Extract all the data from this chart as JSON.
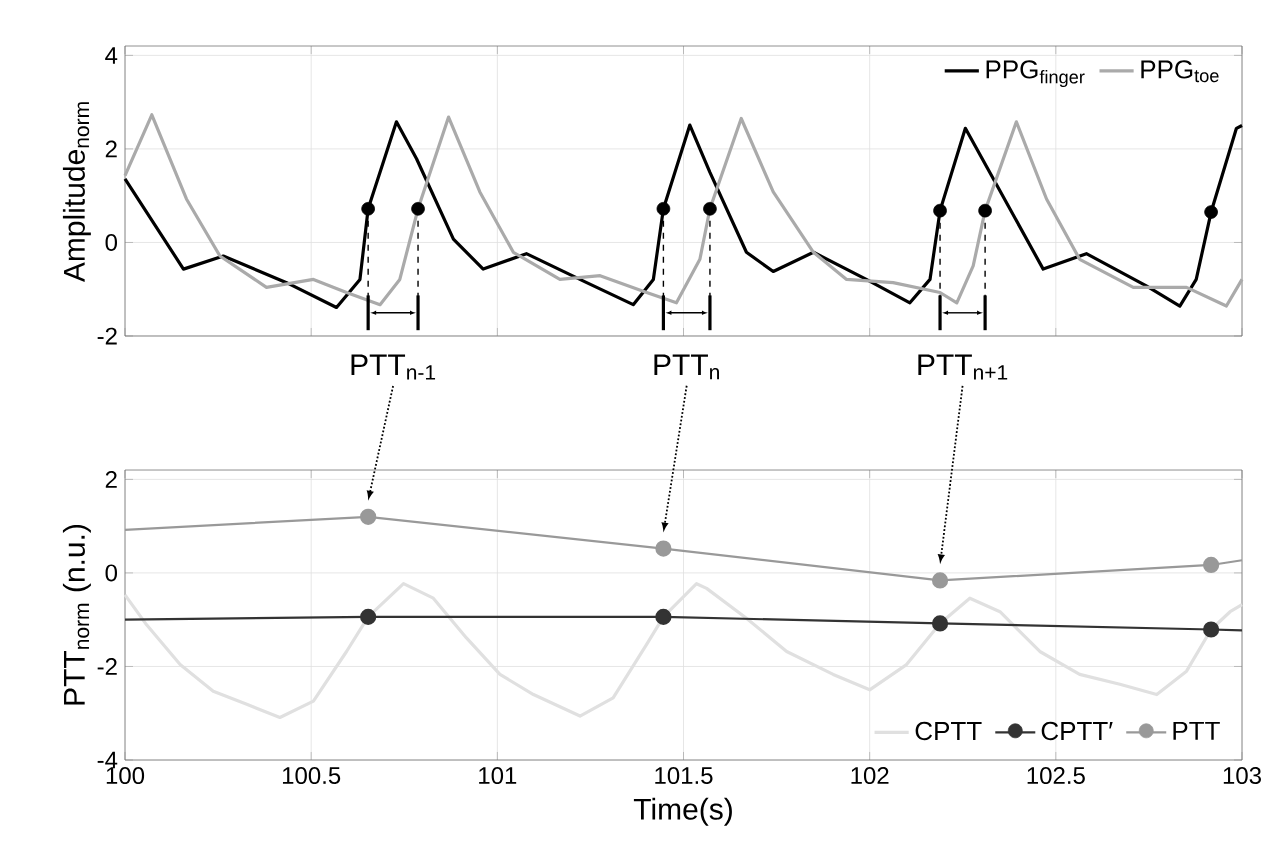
{
  "chart_data": [
    {
      "type": "line",
      "ylabel": "Amplitude$_{norm}$",
      "xlim": [
        100,
        103
      ],
      "ylim": [
        -2,
        4.2
      ],
      "xticks": [
        100,
        100.5,
        101,
        101.5,
        102,
        102.5,
        103
      ],
      "yticks": [
        -2,
        0,
        2,
        4
      ],
      "tick_labels": "y",
      "grid": true,
      "legend": "top right",
      "annotations": [
        {
          "text": "PTT$_{n-1}$",
          "x": 100.653,
          "y": 0.72
        },
        {
          "text": "PTT$_{n}$",
          "x": 101.446,
          "y": 0.72
        },
        {
          "text": "PTT$_{n+1}$",
          "x": 102.189,
          "y": 0.68
        }
      ],
      "series": [
        {
          "name": "PPG$_{finger}$",
          "color": "#000000",
          "x": [
            100.0,
            100.157,
            100.264,
            100.434,
            100.568,
            100.631,
            100.653,
            100.729,
            100.783,
            100.882,
            100.962,
            101.078,
            101.24,
            101.365,
            101.419,
            101.446,
            101.517,
            101.571,
            101.669,
            101.741,
            101.849,
            101.991,
            102.108,
            102.162,
            102.189,
            102.257,
            102.332,
            102.466,
            102.582,
            102.743,
            102.833,
            102.877,
            102.917,
            102.985,
            103.0
          ],
          "values": [
            1.36,
            -0.57,
            -0.29,
            -0.86,
            -1.39,
            -0.79,
            0.72,
            2.58,
            1.79,
            0.07,
            -0.57,
            -0.24,
            -0.86,
            -1.33,
            -0.79,
            0.72,
            2.51,
            1.5,
            -0.21,
            -0.62,
            -0.21,
            -0.79,
            -1.29,
            -0.79,
            0.68,
            2.44,
            1.36,
            -0.57,
            -0.24,
            -0.93,
            -1.36,
            -0.79,
            0.65,
            2.44,
            2.5
          ]
        },
        {
          "name": "PPG$_{toe}$",
          "color": "#aaaaaa",
          "x": [
            100.0,
            100.072,
            100.165,
            100.255,
            100.38,
            100.506,
            100.595,
            100.685,
            100.738,
            100.787,
            100.869,
            100.953,
            101.043,
            101.168,
            101.276,
            101.401,
            101.481,
            101.544,
            101.571,
            101.655,
            101.741,
            101.849,
            101.938,
            102.063,
            102.189,
            102.234,
            102.278,
            102.31,
            102.394,
            102.475,
            102.564,
            102.708,
            102.851,
            102.958,
            103.0
          ],
          "values": [
            1.43,
            2.73,
            0.93,
            -0.29,
            -0.96,
            -0.79,
            -1.07,
            -1.33,
            -0.79,
            0.72,
            2.68,
            1.08,
            -0.21,
            -0.79,
            -0.71,
            -1.07,
            -1.29,
            -0.36,
            0.72,
            2.65,
            1.08,
            -0.21,
            -0.79,
            -0.86,
            -1.07,
            -1.29,
            -0.5,
            0.68,
            2.58,
            0.93,
            -0.36,
            -0.96,
            -0.96,
            -1.36,
            -0.79
          ]
        },
        {
          "type": "scatter",
          "marker": "circle",
          "color": "#000000",
          "x": [
            100.653,
            101.446,
            102.189,
            102.917
          ],
          "values": [
            0.72,
            0.72,
            0.68,
            0.65
          ]
        },
        {
          "type": "scatter",
          "marker": "circle",
          "color": "#000000",
          "x": [
            100.787,
            101.571,
            102.31
          ],
          "values": [
            0.72,
            0.72,
            0.68
          ]
        }
      ]
    },
    {
      "type": "line",
      "xlabel": "Time(s)",
      "ylabel": "PTT$_{norm}$ (n.u.)",
      "xlim": [
        100,
        103
      ],
      "ylim": [
        -4,
        2.2
      ],
      "xticks": [
        100,
        100.5,
        101,
        101.5,
        102,
        102.5,
        103
      ],
      "yticks": [
        -4,
        -2,
        0,
        2
      ],
      "grid": true,
      "legend": "bottom right",
      "series": [
        {
          "name": "CPTT",
          "color": "#e0e0e0",
          "x": [
            100.0,
            100.058,
            100.148,
            100.237,
            100.327,
            100.416,
            100.506,
            100.595,
            100.653,
            100.748,
            100.828,
            100.917,
            101.007,
            101.097,
            101.222,
            101.311,
            101.401,
            101.446,
            101.535,
            101.562,
            101.669,
            101.777,
            101.902,
            102.0,
            102.099,
            102.189,
            102.269,
            102.35,
            102.457,
            102.564,
            102.672,
            102.771,
            102.851,
            102.917,
            102.968,
            103.0
          ],
          "values": [
            -0.47,
            -1.11,
            -1.96,
            -2.53,
            -2.81,
            -3.09,
            -2.74,
            -1.68,
            -0.94,
            -0.23,
            -0.54,
            -1.39,
            -2.17,
            -2.6,
            -3.06,
            -2.67,
            -1.53,
            -0.94,
            -0.23,
            -0.33,
            -0.97,
            -1.68,
            -2.17,
            -2.5,
            -1.96,
            -1.08,
            -0.54,
            -0.83,
            -1.68,
            -2.17,
            -2.38,
            -2.6,
            -2.1,
            -1.21,
            -0.83,
            -0.68
          ]
        },
        {
          "name": "CPTT′",
          "color": "#333333",
          "marker": "circle",
          "x": [
            100.0,
            100.653,
            101.446,
            102.189,
            102.917,
            103.0
          ],
          "values": [
            -1.0,
            -0.94,
            -0.94,
            -1.08,
            -1.21,
            -1.23
          ]
        },
        {
          "name": "PTT",
          "color": "#999999",
          "marker": "circle",
          "x": [
            100.0,
            100.653,
            101.446,
            102.189,
            102.917,
            103.0
          ],
          "values": [
            0.92,
            1.2,
            0.52,
            -0.16,
            0.17,
            0.27
          ]
        }
      ]
    }
  ]
}
